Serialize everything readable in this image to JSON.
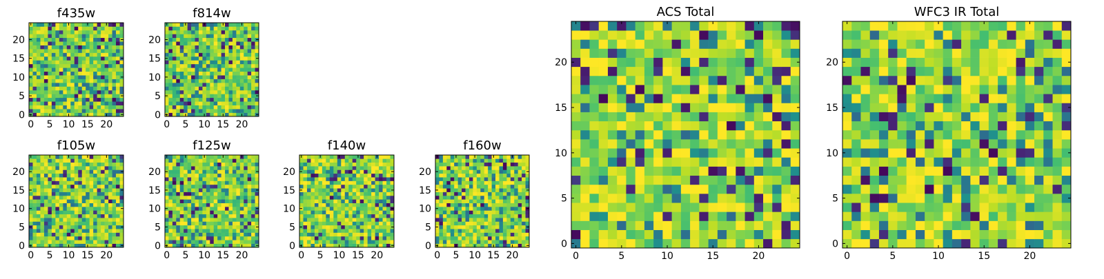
{
  "chart_data": [
    {
      "type": "heatmap",
      "title": "f435w",
      "grid_size": 25,
      "colormap": "viridis",
      "xlim": [
        -0.5,
        24.5
      ],
      "ylim": [
        -0.5,
        24.5
      ],
      "xticks": [
        0,
        5,
        10,
        15,
        20
      ],
      "yticks": [
        0,
        5,
        10,
        15,
        20
      ],
      "seed": 1,
      "bias": 0.0
    },
    {
      "type": "heatmap",
      "title": "f814w",
      "grid_size": 25,
      "colormap": "viridis",
      "xlim": [
        -0.5,
        24.5
      ],
      "ylim": [
        -0.5,
        24.5
      ],
      "xticks": [
        0,
        5,
        10,
        15,
        20
      ],
      "yticks": [
        0,
        5,
        10,
        15,
        20
      ],
      "seed": 2,
      "bias": 0.0
    },
    {
      "type": "heatmap",
      "title": "f105w",
      "grid_size": 25,
      "colormap": "viridis",
      "xlim": [
        -0.5,
        24.5
      ],
      "ylim": [
        -0.5,
        24.5
      ],
      "xticks": [
        0,
        5,
        10,
        15,
        20
      ],
      "yticks": [
        0,
        5,
        10,
        15,
        20
      ],
      "seed": 3,
      "bias": 0.05
    },
    {
      "type": "heatmap",
      "title": "f125w",
      "grid_size": 25,
      "colormap": "viridis",
      "xlim": [
        -0.5,
        24.5
      ],
      "ylim": [
        -0.5,
        24.5
      ],
      "xticks": [
        0,
        5,
        10,
        15,
        20
      ],
      "yticks": [
        0,
        5,
        10,
        15,
        20
      ],
      "seed": 4,
      "bias": 0.05
    },
    {
      "type": "heatmap",
      "title": "f140w",
      "grid_size": 25,
      "colormap": "viridis",
      "xlim": [
        -0.5,
        24.5
      ],
      "ylim": [
        -0.5,
        24.5
      ],
      "xticks": [
        0,
        5,
        10,
        15,
        20
      ],
      "yticks": [
        0,
        5,
        10,
        15,
        20
      ],
      "seed": 5,
      "bias": 0.08
    },
    {
      "type": "heatmap",
      "title": "f160w",
      "grid_size": 25,
      "colormap": "viridis",
      "xlim": [
        -0.5,
        24.5
      ],
      "ylim": [
        -0.5,
        24.5
      ],
      "xticks": [
        0,
        5,
        10,
        15,
        20
      ],
      "yticks": [
        0,
        5,
        10,
        15,
        20
      ],
      "seed": 6,
      "bias": 0.1
    },
    {
      "type": "heatmap",
      "title": "ACS Total",
      "grid_size": 25,
      "colormap": "viridis",
      "xlim": [
        -0.5,
        24.5
      ],
      "ylim": [
        -0.5,
        24.5
      ],
      "xticks": [
        0,
        5,
        10,
        15,
        20
      ],
      "yticks": [
        0,
        5,
        10,
        15,
        20
      ],
      "seed": 7,
      "bias": 0.15
    },
    {
      "type": "heatmap",
      "title": "WFC3 IR Total",
      "grid_size": 25,
      "colormap": "viridis",
      "xlim": [
        -0.5,
        24.5
      ],
      "ylim": [
        -0.5,
        24.5
      ],
      "xticks": [
        0,
        5,
        10,
        15,
        20
      ],
      "yticks": [
        0,
        5,
        10,
        15,
        20
      ],
      "seed": 8,
      "bias": 0.15
    }
  ]
}
